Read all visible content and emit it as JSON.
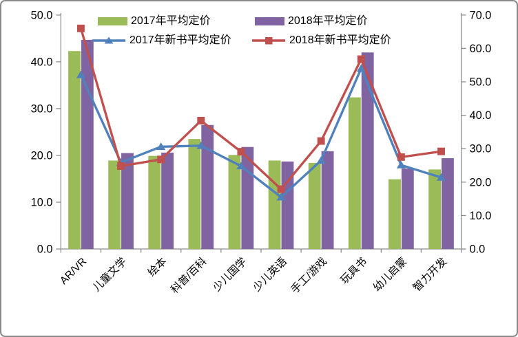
{
  "chart_data": {
    "type": "combo-bar-line",
    "title": "",
    "categories": [
      "AR/VR",
      "儿童文学",
      "绘本",
      "科普/百科",
      "少儿国学",
      "少儿英语",
      "手工/游戏",
      "玩具书",
      "幼儿启蒙",
      "智力开发"
    ],
    "series": [
      {
        "name": "2017年平均定价",
        "type": "bar",
        "axis": "left",
        "color": "#9BBB59",
        "values": [
          42.3,
          18.9,
          19.9,
          23.5,
          20.1,
          18.9,
          18.4,
          32.4,
          14.9,
          17.0
        ]
      },
      {
        "name": "2018年平均定价",
        "type": "bar",
        "axis": "left",
        "color": "#8064A2",
        "values": [
          44.7,
          20.5,
          20.6,
          26.5,
          21.8,
          18.7,
          20.9,
          42.0,
          17.2,
          19.4
        ]
      },
      {
        "name": "2017年新书平均定价",
        "type": "line",
        "marker": "triangle",
        "axis": "right",
        "color": "#4F81BD",
        "values": [
          52.1,
          25.9,
          30.6,
          30.9,
          24.8,
          15.5,
          26.5,
          54.0,
          25.1,
          21.4
        ]
      },
      {
        "name": "2018年新书平均定价",
        "type": "line",
        "marker": "square",
        "axis": "right",
        "color": "#C0504D",
        "values": [
          66.0,
          24.8,
          26.8,
          38.4,
          29.1,
          17.9,
          32.3,
          56.8,
          27.5,
          29.2
        ]
      }
    ],
    "left_axis": {
      "min": 0,
      "max": 50,
      "step": 10,
      "tick_labels": [
        "0.0",
        "10.0",
        "20.0",
        "30.0",
        "40.0",
        "50.0"
      ]
    },
    "right_axis": {
      "min": 0,
      "max": 70,
      "step": 10,
      "tick_labels": [
        "0.0",
        "10.0",
        "20.0",
        "30.0",
        "40.0",
        "50.0",
        "60.0",
        "70.0"
      ]
    },
    "legend_position": "top",
    "gridlines": false,
    "axis_color": "#8C8C8C",
    "text_color": "#000000"
  }
}
